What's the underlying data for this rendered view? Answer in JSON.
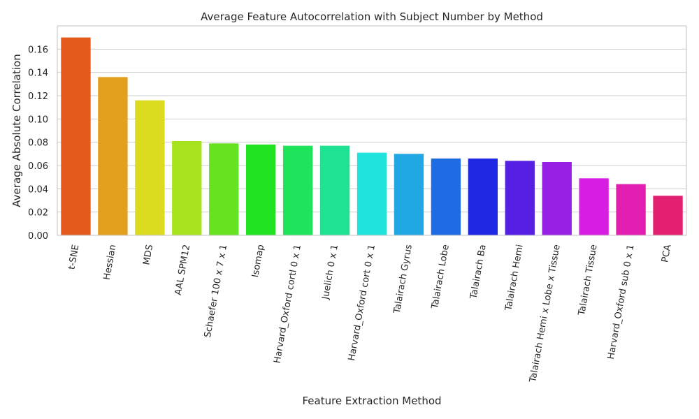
{
  "chart_data": {
    "type": "bar",
    "title": "Average Feature Autocorrelation with Subject Number by Method",
    "xlabel": "Feature Extraction Method",
    "ylabel": "Average Absolute Correlation",
    "ylim": [
      0,
      0.18
    ],
    "yticks": [
      0.0,
      0.02,
      0.04,
      0.06,
      0.08,
      0.1,
      0.12,
      0.14,
      0.16
    ],
    "ytick_labels": [
      "0.00",
      "0.02",
      "0.04",
      "0.06",
      "0.08",
      "0.10",
      "0.12",
      "0.14",
      "0.16"
    ],
    "grid": true,
    "legend": "none",
    "categories": [
      "t-SNE",
      "Hessian",
      "MDS",
      "AAL SPM12",
      "Schaefer 100 x 7 x 1",
      "Isomap",
      "Harvard_Oxford cortl 0 x 1",
      "Juelich 0 x 1",
      "Harvard_Oxford cort 0 x 1",
      "Talairach Gyrus",
      "Talairach Lobe",
      "Talairach Ba",
      "Talairach Hemi",
      "Talairach Hemi x Lobe x Tissue",
      "Talairach Tissue",
      "Harvard_Oxford sub 0 x 1",
      "PCA"
    ],
    "values": [
      0.17,
      0.136,
      0.116,
      0.081,
      0.079,
      0.078,
      0.077,
      0.077,
      0.071,
      0.07,
      0.066,
      0.066,
      0.064,
      0.063,
      0.049,
      0.044,
      0.034
    ],
    "colors": [
      "#e35a1c",
      "#e3a01f",
      "#dbdb1f",
      "#a8e31f",
      "#66e31f",
      "#22e322",
      "#1fe35a",
      "#1fe393",
      "#1fe3dc",
      "#1fa8e3",
      "#1f6be3",
      "#1f28e3",
      "#561fe3",
      "#951fe3",
      "#d71fe3",
      "#e31fb2",
      "#e31f6f"
    ]
  }
}
